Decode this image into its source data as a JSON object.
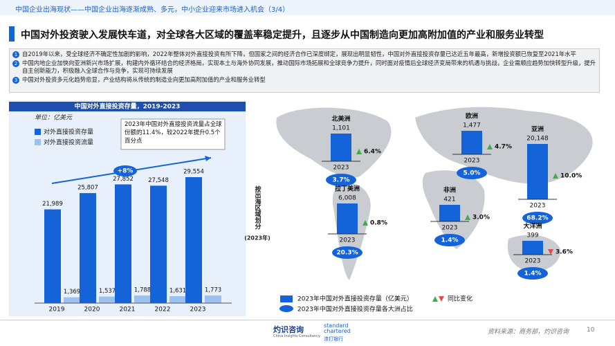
{
  "header": "中国企业出海现状——中国企业出海逐渐成熟、多元，中小企业迎来市场进入机会（3/4）",
  "title": "中国对外投资驶入发展快车道，对全球各大区域的覆盖率稳定提升，且逐步从中国制造向更加高附加值的产业和服务业转型",
  "points": [
    {
      "num": "1",
      "text": "自2019年以来，受全球经济不确定性加剧的影响，2022年整体对外直接投资有所下降，但国家之间的经济合作已深度绑定，展现出明显韧性，中国对外直接投资存量已达近五年最高，新增投资额已恢复至2021年水平"
    },
    {
      "num": "2",
      "text": "中国内地企业加快向亚洲新兴市场扩展，构建内外循环结合的经济格局，实现本土与海外协同发展，推动国际市场拓展和全球竞争力提升，同时面对疫情后全球经济变局带来的机遇与挑战，企业需顺应趋势加快转型升级，提升自主创新能力，积极融入全球合作与竞争，实现可持续发展"
    },
    {
      "num": "3",
      "text": "中国对外投资多元化趋势愈显，产业结构将从传统的制造业向更加高附加值的产业和服务业转型"
    }
  ],
  "chart_data": {
    "type": "bar",
    "title": "中国对外直接投资存量，2019-2023",
    "unit": "单位：亿美元",
    "categories": [
      "2019",
      "2020",
      "2021",
      "2022",
      "2023"
    ],
    "series": [
      {
        "name": "对外直接投资存量",
        "color": "#1463d8",
        "values": [
          21989,
          25807,
          27852,
          27548,
          29554
        ],
        "value_labels": [
          "21,989",
          "25,807",
          "27,852",
          "27,548",
          "29,554"
        ]
      },
      {
        "name": "对外直接投资流量",
        "color": "#9cc1ee",
        "values": [
          1369,
          1537,
          1788,
          1631,
          1773
        ],
        "value_labels": [
          "1,369",
          "1,537",
          "1,788",
          "1,631",
          "1,773"
        ]
      }
    ],
    "annotations": [
      "+8%",
      "2023年中国对外直接投资流量占全球份额的11.4%，较2022年提升0.5个百分点"
    ]
  },
  "map": {
    "side_label": "按出海区域划分",
    "side_year": "(2023年)",
    "regions": [
      {
        "name": "北美洲",
        "value": "1,101",
        "year": "2023",
        "change": "6.4%",
        "direction": "up",
        "share": "3.7%"
      },
      {
        "name": "欧洲",
        "value": "1,477",
        "year": "2023",
        "change": "4.7%",
        "direction": "up",
        "share": "5.0%"
      },
      {
        "name": "亚洲",
        "value": "20,148",
        "year": "2023",
        "change": "10.0%",
        "direction": "up",
        "share": "68.2%"
      },
      {
        "name": "拉丁美洲",
        "value": "6,008",
        "year": "2023",
        "change": "0.8%",
        "direction": "up",
        "share": "20.3%"
      },
      {
        "name": "非洲",
        "value": "421",
        "year": "2023",
        "change": "3.0%",
        "direction": "up",
        "share": "1.4%"
      },
      {
        "name": "大洋洲",
        "value": "399",
        "year": "2023",
        "change": "3.6%",
        "direction": "down",
        "share": "1.4%"
      }
    ],
    "legend": [
      "2023年中国对外直接投资存量（亿美元）",
      "2023年中国对外直接投资存量各大洲占比",
      "同比变化"
    ]
  },
  "footer": {
    "logo1": "灼识咨询",
    "logo1_en": "China Insights Consultancy",
    "logo2": "standard chartered",
    "logo2_cn": "渣打银行",
    "source": "资料来源：商务部，灼识咨询",
    "page": "10"
  }
}
